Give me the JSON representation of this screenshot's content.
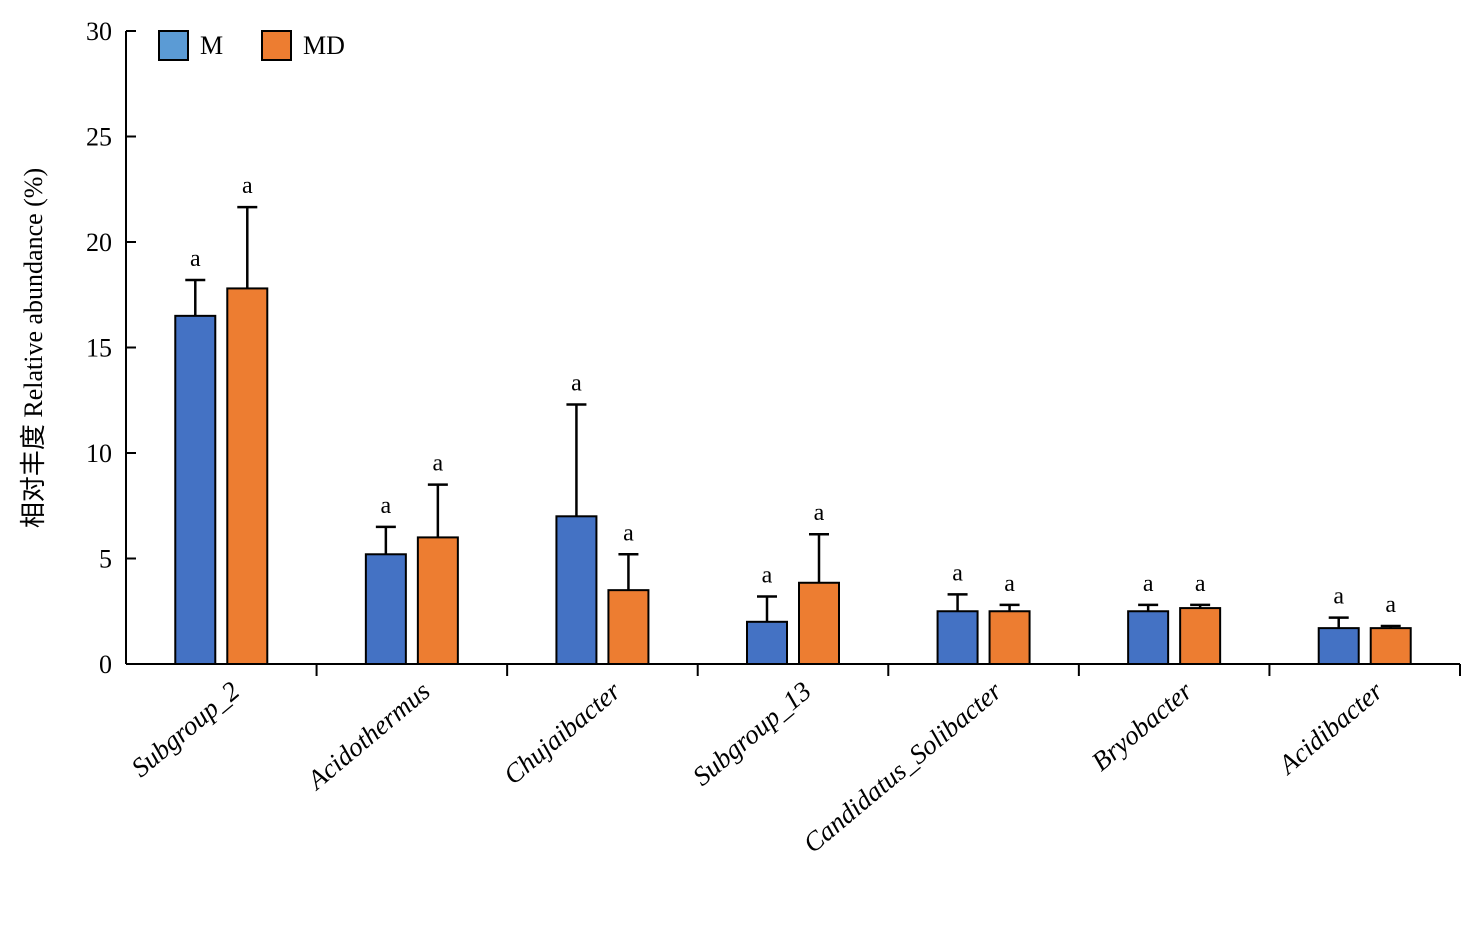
{
  "chart_data": {
    "type": "bar",
    "ylabel": "相对丰度 Relative abundance (%)",
    "xlabel": "",
    "ylim": [
      0,
      30
    ],
    "yticks": [
      0,
      5,
      10,
      15,
      20,
      25,
      30
    ],
    "categories": [
      "Subgroup_2",
      "Acidothermus",
      "Chujaibacter",
      "Subgroup_13",
      "Candidatus_Solibacter",
      "Bryobacter",
      "Acidibacter"
    ],
    "series": [
      {
        "name": "M",
        "color": "#4472c4",
        "values": [
          16.5,
          5.2,
          7.0,
          2.0,
          2.5,
          2.5,
          1.7
        ],
        "errors": [
          1.7,
          1.3,
          5.3,
          1.2,
          0.8,
          0.3,
          0.5
        ],
        "significance": [
          "a",
          "a",
          "a",
          "a",
          "a",
          "a",
          "a"
        ]
      },
      {
        "name": "MD",
        "color": "#ed7d31",
        "values": [
          17.8,
          6.0,
          3.5,
          3.85,
          2.5,
          2.65,
          1.7
        ],
        "errors": [
          3.85,
          2.5,
          1.7,
          2.3,
          0.3,
          0.15,
          0.1
        ],
        "significance": [
          "a",
          "a",
          "a",
          "a",
          "a",
          "a",
          "a"
        ]
      }
    ],
    "legend": {
      "position": "top-left",
      "entries": [
        {
          "label": "M",
          "swatch_color": "#5b9bd5"
        },
        {
          "label": "MD",
          "swatch_color": "#ed7d31"
        }
      ]
    },
    "grid": false
  }
}
